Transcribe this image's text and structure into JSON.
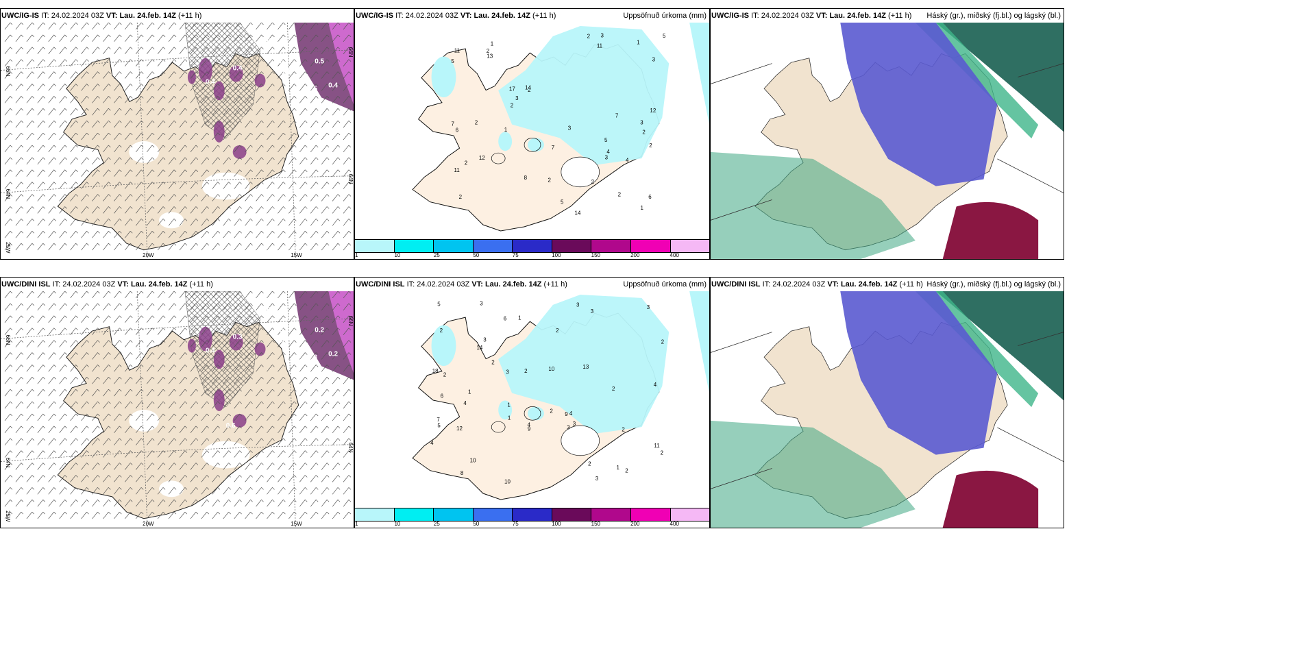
{
  "rows": [
    {
      "model": "UWC/IG-IS",
      "it_label": "IT:",
      "it_value": "24.02.2024 03Z",
      "vt_label": "VT:",
      "vt_value": "Lau. 24.feb. 14Z",
      "lead": "(+11 h)",
      "wind_labels": [
        "0.7",
        "0.5",
        "0.4",
        "0.6",
        "0.4",
        "0.5",
        "0.4",
        "0.9"
      ],
      "precip_numbers": [
        "5",
        "2",
        "2",
        "1",
        "2",
        "2",
        "11",
        "11",
        "17",
        "14",
        "5",
        "7",
        "11",
        "6",
        "8",
        "12",
        "7",
        "3",
        "14",
        "12",
        "5",
        "1",
        "2",
        "2",
        "2",
        "2",
        "4",
        "6",
        "13",
        "7",
        "5",
        "2",
        "3",
        "1",
        "3",
        "4",
        "3",
        "2",
        "2",
        "2",
        "3",
        "3",
        "1"
      ]
    },
    {
      "model": "UWC/DINI ISL",
      "it_label": "IT:",
      "it_value": "24.02.2024 03Z",
      "vt_label": "VT:",
      "vt_value": "Lau. 24.feb. 14Z",
      "lead": "(+11 h)",
      "wind_labels": [
        "0.2",
        "0.2",
        "0.2",
        "0.3",
        "0.3",
        "0.3",
        "0.4",
        "0.7",
        "0.6"
      ],
      "precip_numbers": [
        "3",
        "2",
        "3",
        "3",
        "1",
        "2",
        "2",
        "4",
        "3",
        "10",
        "10",
        "18",
        "12",
        "4",
        "2",
        "11",
        "13",
        "5",
        "10",
        "14",
        "7",
        "9",
        "9",
        "8",
        "5",
        "3",
        "2",
        "6",
        "4",
        "2",
        "4",
        "1",
        "1",
        "2",
        "2",
        "3",
        "3",
        "4",
        "2",
        "3",
        "1",
        "2",
        "2",
        "6",
        "3",
        "2",
        "1"
      ]
    }
  ],
  "precip_legend": "Uppsöfnuð úrkoma (mm)",
  "cloud_legend": "Háský (gr.), miðský (fj.bl.) og lágský (bl.)",
  "colorbar": {
    "colors": [
      "#b8f6fa",
      "#00eef2",
      "#00c4f0",
      "#3a6ff0",
      "#2a2ac8",
      "#6a0a5a",
      "#b0088c",
      "#f000b4",
      "#f5b8f5"
    ],
    "ticks": [
      "1",
      "10",
      "25",
      "50",
      "75",
      "100",
      "150",
      "200",
      "400"
    ]
  },
  "axis_labels": {
    "lat66": "66N",
    "lat64": "64N",
    "lat25w": "25W",
    "lon20": "20W",
    "lon15": "15W",
    "lat66r": "66N",
    "lat64r": "64N"
  }
}
